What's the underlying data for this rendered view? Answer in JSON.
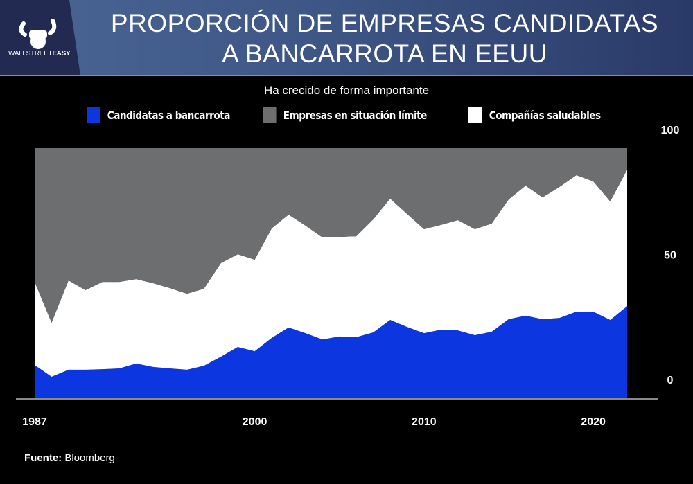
{
  "header": {
    "title_line1": "PROPORCIÓN DE EMPRESAS CANDIDATAS",
    "title_line2": "A BANCARROTA EN EEUU",
    "logo_text_light": "WALLSTREET",
    "logo_text_bold": "EASY",
    "logo_icon": "bull-fist-icon"
  },
  "source": {
    "label": "Fuente:",
    "value": "Bloomberg"
  },
  "chart_data": {
    "type": "area",
    "stacked": true,
    "subtitle": "Ha crecido de forma importante",
    "legend_placement": "top",
    "grid": false,
    "x": [
      1987,
      1988,
      1989,
      1990,
      1991,
      1992,
      1993,
      1994,
      1995,
      1996,
      1997,
      1998,
      1999,
      2000,
      2001,
      2002,
      2003,
      2004,
      2005,
      2006,
      2007,
      2008,
      2009,
      2010,
      2011,
      2012,
      2013,
      2014,
      2015,
      2016,
      2017,
      2018,
      2019,
      2020,
      2021,
      2022
    ],
    "xticks": [
      "1987",
      "2000",
      "2010",
      "2020"
    ],
    "xlim": [
      1987,
      2022
    ],
    "yticks": [
      "0",
      "50",
      "100"
    ],
    "ylim": [
      0,
      100
    ],
    "y_axis_side": "right",
    "series": [
      {
        "name": "Candidatas a bancarrota",
        "color": "#0b36e0",
        "values": [
          13.3,
          8.6,
          11.4,
          11.4,
          11.6,
          11.9,
          13.9,
          12.5,
          11.9,
          11.4,
          13.0,
          16.6,
          20.5,
          18.8,
          24.1,
          28.3,
          26.0,
          23.5,
          24.7,
          24.4,
          26.3,
          31.3,
          28.5,
          26.0,
          27.4,
          27.1,
          25.2,
          26.6,
          31.6,
          33.0,
          31.6,
          32.1,
          34.6,
          34.6,
          31.3,
          36.8
        ]
      },
      {
        "name": "Compañías saludables",
        "color": "#ffffff",
        "values": [
          33.2,
          21.6,
          35.7,
          31.8,
          34.9,
          34.6,
          33.7,
          33.5,
          32.1,
          30.4,
          30.8,
          37.4,
          37.1,
          36.6,
          43.8,
          45.1,
          43.0,
          40.8,
          39.8,
          40.4,
          45.2,
          48.5,
          45.2,
          41.6,
          41.9,
          44.1,
          42.4,
          43.2,
          47.9,
          52.0,
          48.7,
          52.4,
          54.6,
          52.1,
          47.4,
          54.6
        ]
      },
      {
        "name": "Empresas en situación límite",
        "color": "#6d6e70",
        "values": [
          53.5,
          69.8,
          52.9,
          56.8,
          53.5,
          53.5,
          52.4,
          54.0,
          56.0,
          58.2,
          56.2,
          46.0,
          42.4,
          44.6,
          32.1,
          26.6,
          31.0,
          35.7,
          35.5,
          35.2,
          28.5,
          20.2,
          26.3,
          32.4,
          30.7,
          28.8,
          32.4,
          30.2,
          20.5,
          15.0,
          19.7,
          15.5,
          10.8,
          13.3,
          21.3,
          8.6
        ]
      }
    ],
    "legend_order": [
      0,
      2,
      1
    ]
  }
}
